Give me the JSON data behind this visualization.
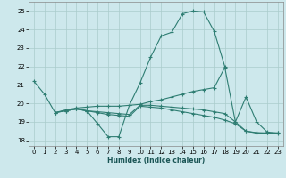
{
  "xlabel": "Humidex (Indice chaleur)",
  "xlim": [
    -0.5,
    23.5
  ],
  "ylim": [
    17.7,
    25.5
  ],
  "xticks": [
    0,
    1,
    2,
    3,
    4,
    5,
    6,
    7,
    8,
    9,
    10,
    11,
    12,
    13,
    14,
    15,
    16,
    17,
    18,
    19,
    20,
    21,
    22,
    23
  ],
  "yticks": [
    18,
    19,
    20,
    21,
    22,
    23,
    24,
    25
  ],
  "bg_color": "#cde8ec",
  "grid_color": "#aacccc",
  "line_color": "#2e7d72",
  "lines": [
    {
      "x": [
        0,
        1,
        2,
        3,
        4,
        5,
        6,
        7,
        8,
        9,
        10,
        11,
        12,
        13,
        14,
        15,
        16,
        17,
        18
      ],
      "y": [
        21.2,
        20.5,
        19.5,
        19.6,
        19.7,
        19.6,
        18.9,
        18.2,
        18.2,
        19.9,
        21.1,
        22.5,
        23.65,
        23.85,
        24.85,
        25.0,
        24.95,
        23.9,
        22.0
      ]
    },
    {
      "x": [
        2,
        3,
        4,
        5,
        6,
        7,
        8,
        9,
        10,
        11,
        12,
        13,
        14,
        15,
        16,
        17,
        18,
        19,
        20,
        21,
        22,
        23
      ],
      "y": [
        19.5,
        19.65,
        19.75,
        19.8,
        19.85,
        19.85,
        19.85,
        19.9,
        19.95,
        20.1,
        20.2,
        20.35,
        20.5,
        20.65,
        20.75,
        20.85,
        21.95,
        19.0,
        20.35,
        19.0,
        18.45,
        18.4
      ]
    },
    {
      "x": [
        2,
        3,
        4,
        5,
        6,
        7,
        8,
        9,
        10,
        11,
        12,
        13,
        14,
        15,
        16,
        17,
        18,
        19,
        20,
        21,
        22,
        23
      ],
      "y": [
        19.5,
        19.6,
        19.7,
        19.6,
        19.55,
        19.5,
        19.45,
        19.4,
        19.9,
        19.9,
        19.85,
        19.8,
        19.75,
        19.7,
        19.65,
        19.55,
        19.45,
        19.0,
        18.5,
        18.4,
        18.4,
        18.4
      ]
    },
    {
      "x": [
        3,
        4,
        5,
        6,
        7,
        8,
        9,
        10,
        11,
        12,
        13,
        14,
        15,
        16,
        17,
        18,
        19,
        20,
        21,
        22,
        23
      ],
      "y": [
        19.6,
        19.7,
        19.6,
        19.5,
        19.4,
        19.35,
        19.3,
        19.85,
        19.8,
        19.75,
        19.65,
        19.55,
        19.45,
        19.35,
        19.25,
        19.1,
        18.9,
        18.5,
        18.42,
        18.4,
        18.38
      ]
    }
  ]
}
